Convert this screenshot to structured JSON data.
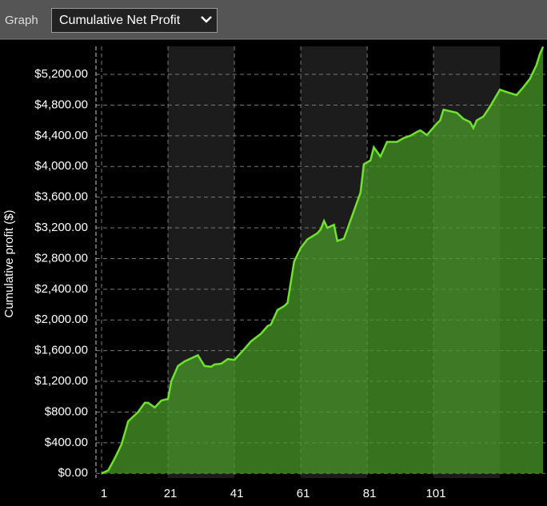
{
  "header": {
    "label": "Graph",
    "dropdown": "Cumulative Net Profit"
  },
  "chart_data": {
    "type": "area",
    "ylabel": "Cumulative profit ($)",
    "x": [
      1,
      3,
      5,
      7,
      9,
      12,
      14,
      15,
      17,
      19,
      21,
      22,
      24,
      26,
      28,
      30,
      32,
      34,
      35,
      37,
      39,
      41,
      44,
      46,
      49,
      51,
      52,
      54,
      56,
      57,
      59,
      61,
      63,
      66,
      67,
      68,
      69,
      71,
      72,
      74,
      76,
      79,
      80,
      82,
      83,
      85,
      87,
      90,
      92,
      94,
      96,
      97,
      99,
      102,
      103,
      104,
      108,
      110,
      112,
      113,
      114,
      116,
      118,
      121,
      123,
      126,
      128,
      130,
      132,
      133,
      134
    ],
    "values": [
      0,
      40,
      200,
      380,
      680,
      800,
      920,
      920,
      860,
      950,
      970,
      1200,
      1400,
      1460,
      1500,
      1540,
      1400,
      1390,
      1420,
      1430,
      1490,
      1480,
      1620,
      1720,
      1820,
      1920,
      1940,
      2130,
      2180,
      2220,
      2760,
      2940,
      3050,
      3130,
      3180,
      3290,
      3200,
      3240,
      3030,
      3060,
      3300,
      3660,
      4030,
      4080,
      4250,
      4130,
      4320,
      4320,
      4370,
      4400,
      4450,
      4470,
      4410,
      4560,
      4600,
      4740,
      4700,
      4620,
      4580,
      4500,
      4600,
      4650,
      4780,
      5000,
      4970,
      4930,
      5030,
      5140,
      5320,
      5460,
      5560
    ],
    "color": "#4a9a2a",
    "line_color": "#6ee22e",
    "xlim": [
      -0.7,
      134.7
    ],
    "ylim": [
      -60,
      5565
    ],
    "xticks": [
      1,
      21,
      41,
      61,
      81,
      101
    ],
    "yticks": [
      {
        "value": 0,
        "label": "$0.00"
      },
      {
        "value": 400,
        "label": "$400.00"
      },
      {
        "value": 800,
        "label": "$800.00"
      },
      {
        "value": 1200,
        "label": "$1,200.00"
      },
      {
        "value": 1600,
        "label": "$1,600.00"
      },
      {
        "value": 2000,
        "label": "$2,000.00"
      },
      {
        "value": 2400,
        "label": "$2,400.00"
      },
      {
        "value": 2800,
        "label": "$2,800.00"
      },
      {
        "value": 3200,
        "label": "$3,200.00"
      },
      {
        "value": 3600,
        "label": "$3,600.00"
      },
      {
        "value": 4000,
        "label": "$4,000.00"
      },
      {
        "value": 4400,
        "label": "$4,400.00"
      },
      {
        "value": 4800,
        "label": "$4,800.00"
      },
      {
        "value": 5200,
        "label": "$5,200.00"
      }
    ],
    "grid": true
  }
}
